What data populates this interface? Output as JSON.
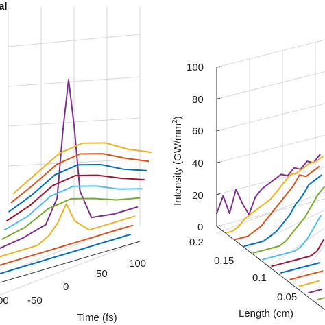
{
  "chart_data": [
    {
      "type": "line",
      "panel_label": "al",
      "xlabel": "Time (fs)",
      "x_ticks": [
        "00",
        "-50",
        "0",
        "50",
        "100"
      ],
      "grid": true,
      "series": [
        {
          "color": "#0072BD",
          "x": [
            -120,
            -80,
            -40,
            0,
            40,
            80,
            120
          ],
          "y": [
            0,
            0,
            0,
            0,
            0,
            0,
            0
          ]
        },
        {
          "color": "#D95319",
          "x": [
            -120,
            -80,
            -40,
            0,
            40,
            80,
            120
          ],
          "y": [
            0,
            0,
            0,
            0,
            0,
            0,
            0
          ]
        },
        {
          "color": "#EDB120",
          "x": [
            -120,
            -80,
            -50,
            -30,
            -15,
            0,
            15,
            40,
            120
          ],
          "y": [
            0,
            0,
            0,
            4,
            10,
            20,
            8,
            0,
            0
          ]
        },
        {
          "color": "#7E2F8E",
          "x": [
            -120,
            -80,
            -40,
            -20,
            -10,
            0,
            10,
            20,
            40,
            80,
            120
          ],
          "y": [
            0,
            2,
            6,
            20,
            60,
            90,
            60,
            20,
            2,
            0,
            0
          ]
        },
        {
          "color": "#77AC30",
          "x": [
            -120,
            -80,
            -40,
            0,
            40,
            80,
            120
          ],
          "y": [
            0,
            3,
            10,
            12,
            8,
            3,
            0
          ]
        },
        {
          "color": "#4DBEEE",
          "x": [
            -120,
            -80,
            -40,
            0,
            40,
            80,
            120
          ],
          "y": [
            0,
            4,
            12,
            14,
            10,
            4,
            0
          ]
        },
        {
          "color": "#A2142F",
          "x": [
            -120,
            -80,
            -40,
            0,
            40,
            80,
            120
          ],
          "y": [
            0,
            5,
            13,
            15,
            11,
            5,
            0
          ]
        },
        {
          "color": "#0072BD",
          "x": [
            -120,
            -80,
            -40,
            0,
            40,
            80,
            120
          ],
          "y": [
            0,
            6,
            14,
            16,
            12,
            5,
            0
          ]
        },
        {
          "color": "#D95319",
          "x": [
            -120,
            -80,
            -40,
            0,
            40,
            80,
            120
          ],
          "y": [
            0,
            7,
            15,
            17,
            13,
            6,
            0
          ]
        },
        {
          "color": "#EDB120",
          "x": [
            -120,
            -80,
            -40,
            0,
            40,
            80,
            120
          ],
          "y": [
            0,
            8,
            16,
            18,
            14,
            6,
            0
          ]
        }
      ]
    },
    {
      "type": "line",
      "ylabel_main": "Intensity (GW/mm",
      "ylabel_sup": "2",
      "ylabel_end": ")",
      "xlabel": "Length (cm)",
      "y_ticks": [
        "0",
        "20",
        "40",
        "60",
        "80",
        "100"
      ],
      "ylim": [
        0,
        100
      ],
      "x_ticks": [
        "0.2",
        "0.15",
        "0.1",
        "0.05"
      ],
      "grid": true,
      "series": [
        {
          "length": 0.2,
          "color": "#7E2F8E",
          "y": [
            8,
            18,
            6,
            20,
            10,
            2,
            12,
            16,
            18,
            20,
            22,
            20,
            24,
            22,
            26,
            24,
            28,
            25
          ]
        },
        {
          "length": 0.185,
          "color": "#EDB120",
          "y": [
            0,
            0,
            2,
            6,
            8,
            10,
            12,
            14,
            18,
            22,
            26,
            26,
            28,
            30,
            30,
            32,
            34,
            34
          ]
        },
        {
          "length": 0.17,
          "color": "#D95319",
          "y": [
            0,
            0,
            0,
            2,
            4,
            8,
            12,
            16,
            20,
            24,
            30,
            28,
            30,
            32,
            34,
            34,
            36,
            36
          ]
        },
        {
          "length": 0.155,
          "color": "#0072BD",
          "y": [
            0,
            0,
            0,
            0,
            2,
            4,
            8,
            12,
            18,
            22,
            28,
            30,
            32,
            34,
            36,
            36,
            38,
            38
          ]
        },
        {
          "length": 0.14,
          "color": "#77AC30",
          "y": [
            0,
            0,
            0,
            0,
            0,
            2,
            6,
            10,
            14,
            20,
            26,
            30,
            34,
            36,
            38,
            40,
            40,
            40
          ]
        },
        {
          "length": 0.125,
          "color": "#4DBEEE",
          "y": [
            0,
            0,
            0,
            0,
            0,
            0,
            2,
            6,
            12,
            18,
            24,
            30,
            34,
            36,
            38,
            40,
            40,
            42
          ]
        },
        {
          "length": 0.11,
          "color": "#A2142F",
          "y": [
            0,
            0,
            0,
            0,
            0,
            0,
            0,
            2,
            8,
            14,
            20,
            26,
            32,
            36,
            38,
            40,
            42,
            42
          ]
        },
        {
          "length": 0.095,
          "color": "#0072BD",
          "y": [
            0,
            0,
            0,
            0,
            0,
            0,
            0,
            0,
            4,
            10,
            16,
            24,
            30,
            34,
            38,
            40,
            42,
            44
          ]
        },
        {
          "length": 0.08,
          "color": "#D95319",
          "y": [
            0,
            0,
            0,
            0,
            0,
            0,
            0,
            0,
            0,
            6,
            12,
            20,
            28,
            34,
            38,
            42,
            44,
            44
          ]
        },
        {
          "length": 0.065,
          "color": "#EDB120",
          "y": [
            0,
            0,
            0,
            0,
            0,
            0,
            0,
            0,
            0,
            2,
            8,
            16,
            24,
            32,
            38,
            42,
            44,
            46
          ]
        },
        {
          "length": 0.05,
          "color": "#7E2F8E",
          "y": [
            0,
            0,
            0,
            0,
            0,
            0,
            0,
            0,
            0,
            0,
            4,
            12,
            20,
            28,
            36,
            42,
            46,
            48
          ]
        },
        {
          "length": 0.035,
          "color": "#77AC30",
          "y": [
            0,
            0,
            0,
            0,
            0,
            0,
            0,
            0,
            0,
            0,
            0,
            8,
            16,
            24,
            34,
            42,
            46,
            48
          ]
        }
      ]
    }
  ]
}
